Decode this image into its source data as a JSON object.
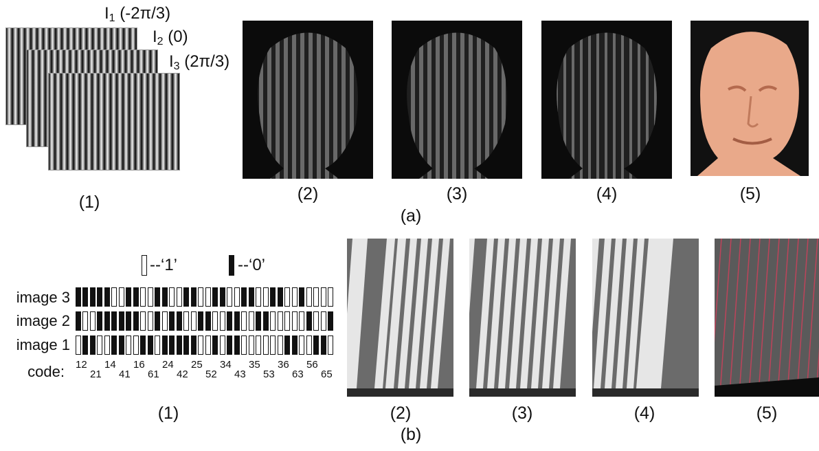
{
  "panel_a": {
    "fringe_labels": [
      {
        "base": "I",
        "sub": "1",
        "rest": " (-2π/3)"
      },
      {
        "base": "I",
        "sub": "2",
        "rest": " (0)"
      },
      {
        "base": "I",
        "sub": "3",
        "rest": " (2π/3)"
      }
    ],
    "captions": [
      "(1)",
      "(2)",
      "(3)",
      "(4)",
      "(5)"
    ],
    "panel_label": "(a)",
    "colors": {
      "face_bg": "#0b0b0b",
      "reconstruction": "#e9a98a"
    }
  },
  "panel_b": {
    "legend": {
      "white_label": "--‘1’",
      "black_label": "--‘0’"
    },
    "row_labels": [
      "image 3",
      "image 2",
      "image 1"
    ],
    "code_label": "code:",
    "codes": [
      "12",
      "21",
      "14",
      "41",
      "16",
      "61",
      "24",
      "42",
      "25",
      "52",
      "34",
      "43",
      "35",
      "53",
      "36",
      "63",
      "56",
      "65"
    ],
    "captions": [
      "(1)",
      "(2)",
      "(3)",
      "(4)",
      "(5)"
    ],
    "panel_label": "(b)",
    "colors": {
      "stripe_bg": "#6b6b6b",
      "stripe_light": "#e6e6e6",
      "overlay_line": "#d0405a"
    }
  }
}
